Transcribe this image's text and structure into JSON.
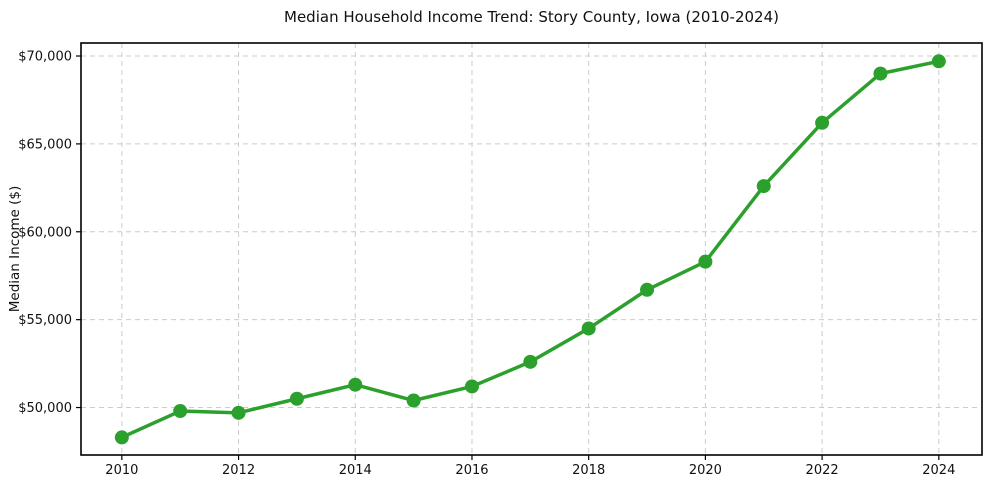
{
  "chart_data": {
    "type": "line",
    "title": "Median Household Income Trend: Story County, Iowa (2010-2024)",
    "xlabel": "",
    "ylabel": "Median Income ($)",
    "x": [
      2010,
      2011,
      2012,
      2013,
      2014,
      2015,
      2016,
      2017,
      2018,
      2019,
      2020,
      2021,
      2022,
      2023,
      2024
    ],
    "values": [
      48300,
      49800,
      49700,
      50500,
      51300,
      50400,
      51200,
      52600,
      54500,
      56700,
      58300,
      62600,
      66200,
      69000,
      69700
    ],
    "x_ticks": [
      2010,
      2012,
      2014,
      2016,
      2018,
      2020,
      2022,
      2024
    ],
    "x_tick_labels": [
      "2010",
      "2012",
      "2014",
      "2016",
      "2018",
      "2020",
      "2022",
      "2024"
    ],
    "y_ticks": [
      50000,
      55000,
      60000,
      65000,
      70000
    ],
    "y_tick_labels": [
      "$50,000",
      "$55,000",
      "$60,000",
      "$65,000",
      "$70,000"
    ],
    "xlim": [
      2009.3,
      2024.74
    ],
    "ylim": [
      47300,
      70740
    ],
    "grid": true,
    "grid_style": "dashed",
    "legend": "none",
    "marker": "circle",
    "colors": {
      "line": "#2ca02c",
      "marker": "#2ca02c",
      "grid": "#cccccc",
      "text": "#111111",
      "spine": "#000000",
      "background": "#ffffff"
    }
  }
}
